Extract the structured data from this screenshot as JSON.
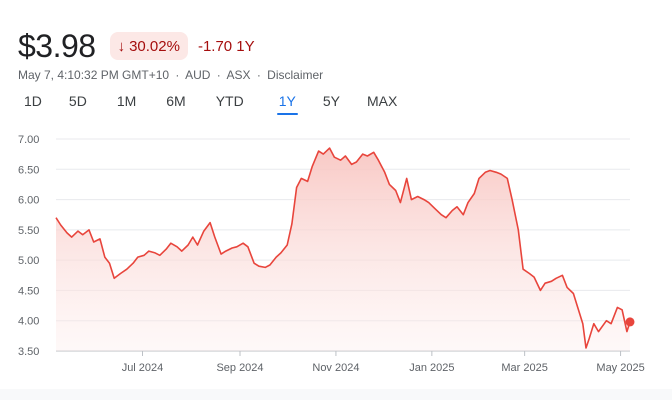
{
  "quote": {
    "price": "$3.98",
    "percent_change": "30.02%",
    "change_direction_icon": "arrow-down-icon",
    "abs_change": "-1.70 1Y",
    "timestamp": "May 7, 4:10:32 PM GMT+10",
    "currency": "AUD",
    "exchange": "ASX",
    "disclaimer": "Disclaimer",
    "separator": "·"
  },
  "ranges": [
    "1D",
    "5D",
    "1M",
    "6M",
    "YTD",
    "1Y",
    "5Y",
    "MAX"
  ],
  "active_range": "1Y",
  "colors": {
    "line": "#e8453c",
    "fill_top": "#f8c6c2",
    "badge_bg": "#fce8e6",
    "badge_text": "#a50e0e",
    "active_tab": "#1a73e8"
  },
  "chart_data": {
    "type": "area",
    "ylim": [
      3.5,
      7.0
    ],
    "y_ticks": [
      "7.00",
      "6.50",
      "6.00",
      "5.50",
      "5.00",
      "4.50",
      "4.00",
      "3.50"
    ],
    "x_range": [
      "2024-05-07",
      "2025-05-07"
    ],
    "x_ticks": [
      {
        "label": "Jul 2024",
        "date": "2024-07-01"
      },
      {
        "label": "Sep 2024",
        "date": "2024-09-01"
      },
      {
        "label": "Nov 2024",
        "date": "2024-11-01"
      },
      {
        "label": "Jan 2025",
        "date": "2025-01-01"
      },
      {
        "label": "Mar 2025",
        "date": "2025-03-01"
      },
      {
        "label": "May 2025",
        "date": "2025-05-01"
      }
    ],
    "grid": true,
    "series": [
      {
        "points": [
          [
            "2024-05-07",
            5.7
          ],
          [
            "2024-05-10",
            5.58
          ],
          [
            "2024-05-14",
            5.45
          ],
          [
            "2024-05-17",
            5.38
          ],
          [
            "2024-05-21",
            5.48
          ],
          [
            "2024-05-24",
            5.42
          ],
          [
            "2024-05-28",
            5.5
          ],
          [
            "2024-05-31",
            5.3
          ],
          [
            "2024-06-04",
            5.35
          ],
          [
            "2024-06-07",
            5.05
          ],
          [
            "2024-06-10",
            4.95
          ],
          [
            "2024-06-13",
            4.7
          ],
          [
            "2024-06-17",
            4.78
          ],
          [
            "2024-06-21",
            4.85
          ],
          [
            "2024-06-25",
            4.95
          ],
          [
            "2024-06-28",
            5.05
          ],
          [
            "2024-07-02",
            5.08
          ],
          [
            "2024-07-05",
            5.15
          ],
          [
            "2024-07-09",
            5.12
          ],
          [
            "2024-07-12",
            5.08
          ],
          [
            "2024-07-16",
            5.18
          ],
          [
            "2024-07-19",
            5.28
          ],
          [
            "2024-07-23",
            5.22
          ],
          [
            "2024-07-26",
            5.15
          ],
          [
            "2024-07-30",
            5.25
          ],
          [
            "2024-08-02",
            5.38
          ],
          [
            "2024-08-05",
            5.25
          ],
          [
            "2024-08-09",
            5.48
          ],
          [
            "2024-08-13",
            5.62
          ],
          [
            "2024-08-16",
            5.38
          ],
          [
            "2024-08-20",
            5.1
          ],
          [
            "2024-08-23",
            5.15
          ],
          [
            "2024-08-27",
            5.2
          ],
          [
            "2024-08-30",
            5.22
          ],
          [
            "2024-09-03",
            5.28
          ],
          [
            "2024-09-06",
            5.22
          ],
          [
            "2024-09-10",
            4.95
          ],
          [
            "2024-09-13",
            4.9
          ],
          [
            "2024-09-17",
            4.88
          ],
          [
            "2024-09-20",
            4.92
          ],
          [
            "2024-09-24",
            5.05
          ],
          [
            "2024-09-27",
            5.12
          ],
          [
            "2024-10-01",
            5.25
          ],
          [
            "2024-10-04",
            5.6
          ],
          [
            "2024-10-07",
            6.2
          ],
          [
            "2024-10-10",
            6.35
          ],
          [
            "2024-10-14",
            6.3
          ],
          [
            "2024-10-17",
            6.55
          ],
          [
            "2024-10-21",
            6.8
          ],
          [
            "2024-10-24",
            6.75
          ],
          [
            "2024-10-28",
            6.85
          ],
          [
            "2024-10-31",
            6.7
          ],
          [
            "2024-11-04",
            6.65
          ],
          [
            "2024-11-07",
            6.72
          ],
          [
            "2024-11-11",
            6.58
          ],
          [
            "2024-11-14",
            6.62
          ],
          [
            "2024-11-18",
            6.75
          ],
          [
            "2024-11-21",
            6.72
          ],
          [
            "2024-11-25",
            6.78
          ],
          [
            "2024-11-28",
            6.65
          ],
          [
            "2024-12-02",
            6.45
          ],
          [
            "2024-12-05",
            6.25
          ],
          [
            "2024-12-09",
            6.15
          ],
          [
            "2024-12-12",
            5.95
          ],
          [
            "2024-12-16",
            6.35
          ],
          [
            "2024-12-19",
            6.0
          ],
          [
            "2024-12-23",
            6.05
          ],
          [
            "2024-12-27",
            6.0
          ],
          [
            "2024-12-30",
            5.95
          ],
          [
            "2025-01-03",
            5.85
          ],
          [
            "2025-01-07",
            5.75
          ],
          [
            "2025-01-10",
            5.7
          ],
          [
            "2025-01-14",
            5.82
          ],
          [
            "2025-01-17",
            5.88
          ],
          [
            "2025-01-21",
            5.75
          ],
          [
            "2025-01-24",
            5.95
          ],
          [
            "2025-01-28",
            6.1
          ],
          [
            "2025-01-31",
            6.35
          ],
          [
            "2025-02-04",
            6.45
          ],
          [
            "2025-02-07",
            6.48
          ],
          [
            "2025-02-11",
            6.45
          ],
          [
            "2025-02-14",
            6.42
          ],
          [
            "2025-02-18",
            6.35
          ],
          [
            "2025-02-21",
            6.0
          ],
          [
            "2025-02-25",
            5.5
          ],
          [
            "2025-02-28",
            4.85
          ],
          [
            "2025-03-04",
            4.78
          ],
          [
            "2025-03-07",
            4.72
          ],
          [
            "2025-03-11",
            4.5
          ],
          [
            "2025-03-14",
            4.62
          ],
          [
            "2025-03-18",
            4.65
          ],
          [
            "2025-03-21",
            4.7
          ],
          [
            "2025-03-25",
            4.75
          ],
          [
            "2025-03-28",
            4.55
          ],
          [
            "2025-04-01",
            4.45
          ],
          [
            "2025-04-04",
            4.2
          ],
          [
            "2025-04-07",
            3.95
          ],
          [
            "2025-04-09",
            3.55
          ],
          [
            "2025-04-11",
            3.7
          ],
          [
            "2025-04-14",
            3.95
          ],
          [
            "2025-04-17",
            3.82
          ],
          [
            "2025-04-22",
            4.0
          ],
          [
            "2025-04-25",
            3.95
          ],
          [
            "2025-04-29",
            4.22
          ],
          [
            "2025-05-02",
            4.18
          ],
          [
            "2025-05-05",
            3.82
          ],
          [
            "2025-05-07",
            3.98
          ]
        ]
      }
    ]
  }
}
